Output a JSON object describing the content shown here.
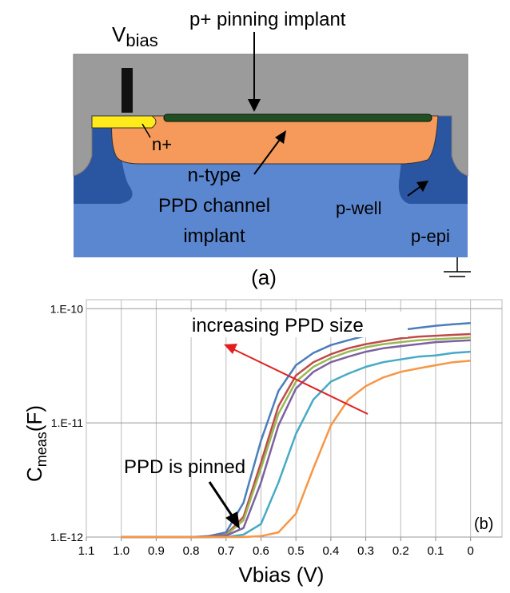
{
  "diagram": {
    "labels": {
      "v": "V",
      "bias": "bias",
      "pinning": "p+ pinning implant",
      "nplus": "n+",
      "ntype": "n-type",
      "channel": "PPD channel",
      "implant": "implant",
      "pwell": "p-well",
      "pepi": "p-epi",
      "panel": "(a)"
    }
  },
  "chart_data": {
    "type": "line",
    "y_label": {
      "main": "C",
      "sub": "meas",
      "unit": "(F)"
    },
    "x_label": "Vbias (V)",
    "annotations": [
      "increasing PPD size",
      "PPD is pinned",
      "(b)"
    ],
    "x": [
      1.0,
      0.95,
      0.9,
      0.85,
      0.8,
      0.75,
      0.7,
      0.65,
      0.6,
      0.55,
      0.5,
      0.45,
      0.4,
      0.35,
      0.3,
      0.25,
      0.2,
      0.15,
      0.1,
      0.05,
      0
    ],
    "series": [
      {
        "color": "#4a7ebb",
        "values": [
          1e-12,
          1e-12,
          1e-12,
          1e-12,
          1e-12,
          1.02e-12,
          1.1e-12,
          2e-12,
          7e-12,
          1.9e-11,
          3.2e-11,
          4.1e-11,
          4.8e-11,
          5.3e-11,
          5.8e-11,
          6.2e-11,
          6.5e-11,
          6.8e-11,
          7.1e-11,
          7.3e-11,
          7.5e-11
        ]
      },
      {
        "color": "#be4b48",
        "values": [
          1e-12,
          1e-12,
          1e-12,
          1e-12,
          1e-12,
          1.01e-12,
          1.05e-12,
          1.5e-12,
          4.5e-12,
          1.4e-11,
          2.6e-11,
          3.4e-11,
          4e-11,
          4.5e-11,
          4.9e-11,
          5.2e-11,
          5.5e-11,
          5.7e-11,
          5.8e-11,
          5.9e-11,
          6e-11
        ]
      },
      {
        "color": "#98b954",
        "values": [
          1e-12,
          1e-12,
          1e-12,
          1e-12,
          1e-12,
          1e-12,
          1.04e-12,
          1.4e-12,
          4e-12,
          1.2e-11,
          2.3e-11,
          3.1e-11,
          3.7e-11,
          4.2e-11,
          4.6e-11,
          4.9e-11,
          5.1e-11,
          5.3e-11,
          5.4e-11,
          5.5e-11,
          5.6e-11
        ]
      },
      {
        "color": "#7d60a0",
        "values": [
          1e-12,
          1e-12,
          1e-12,
          1e-12,
          1e-12,
          1e-12,
          1.03e-12,
          1.2e-12,
          3e-12,
          9.5e-12,
          2e-11,
          2.8e-11,
          3.4e-11,
          3.8e-11,
          4.2e-11,
          4.5e-11,
          4.7e-11,
          4.9e-11,
          5.1e-11,
          5.2e-11,
          5.3e-11
        ]
      },
      {
        "color": "#46aac5",
        "values": [
          1e-12,
          1e-12,
          1e-12,
          1e-12,
          1e-12,
          1e-12,
          1e-12,
          1.05e-12,
          1.3e-12,
          3e-12,
          8e-12,
          1.6e-11,
          2.3e-11,
          2.7e-11,
          3.1e-11,
          3.4e-11,
          3.6e-11,
          3.8e-11,
          3.9e-11,
          4.1e-11,
          4.2e-11
        ]
      },
      {
        "color": "#f79646",
        "values": [
          1e-12,
          1e-12,
          1e-12,
          1e-12,
          1e-12,
          1e-12,
          1e-12,
          1e-12,
          1.02e-12,
          1.1e-12,
          1.6e-12,
          4e-12,
          9.5e-12,
          1.6e-11,
          2.1e-11,
          2.5e-11,
          2.8e-11,
          3e-11,
          3.2e-11,
          3.4e-11,
          3.5e-11
        ]
      }
    ],
    "xlim": [
      1.1,
      -0.09
    ],
    "xticks": [
      1.1,
      {
        "value": 1,
        "label": "1.0"
      },
      0.9,
      0.8,
      0.7,
      0.6,
      0.5,
      0.4,
      0.3,
      0.2,
      0.1,
      0
    ],
    "ylim": [
      1e-12,
      1.2e-10
    ],
    "yticks": [
      {
        "value": 1e-12,
        "label": "1.E-12"
      },
      {
        "value": 1e-11,
        "label": "1.E-11"
      },
      {
        "value": 1e-10,
        "label": "1.E-10"
      }
    ],
    "log_y": true,
    "grid": true
  }
}
